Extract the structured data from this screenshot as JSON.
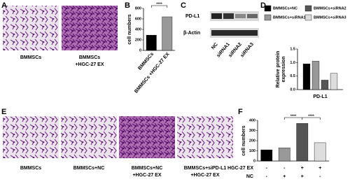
{
  "panel_labels": [
    "A",
    "B",
    "C",
    "D",
    "E",
    "F"
  ],
  "captions_a": [
    [
      "BMMSCs"
    ],
    [
      "BMMSCs",
      "+HGC-27 EX"
    ]
  ],
  "blot": {
    "rows": [
      "PD-L1",
      "β-Actin"
    ],
    "lanes": [
      "NC",
      "siRNA1",
      "siRNA2",
      "siRNA3"
    ]
  },
  "captions_e": [
    [
      "BMMSCs"
    ],
    [
      "BMMSCs+NC"
    ],
    [
      "BMMSCs+NC",
      "+HGC-27 EX"
    ],
    [
      "BMMSCs+siPD-L1",
      "+HGC-27 EX"
    ]
  ],
  "treatment_rows": [
    {
      "label": "HGC-27 EX",
      "marks": [
        "-",
        "-",
        "+",
        "+"
      ]
    },
    {
      "label": "NC",
      "marks": [
        "-",
        "+",
        "+",
        "-"
      ]
    }
  ],
  "chart_data": [
    {
      "type": "bar",
      "ylabel": "cell numbers",
      "categories": [
        "BMMSCs",
        "BMMSCs +HGC-27 EX"
      ],
      "values": [
        290,
        640
      ],
      "colors": [
        "#000000",
        "#999999"
      ],
      "ylim": [
        0,
        800
      ],
      "yticks": [
        0,
        200,
        400,
        600,
        800
      ],
      "annotations": [
        "****"
      ]
    },
    {
      "type": "grouped-bar",
      "ylabel": [
        "Relative protein",
        "expression"
      ],
      "categories": [
        "PD-L1"
      ],
      "series": [
        {
          "name": "BMMSCs+NC",
          "color": "#000000",
          "values": [
            0.95
          ]
        },
        {
          "name": "BMMSCs+siRNA1",
          "color": "#999999",
          "values": [
            1.05
          ]
        },
        {
          "name": "BMMSCs+siRNA2",
          "color": "#555555",
          "values": [
            0.35
          ]
        },
        {
          "name": "BMMSCs+siRNA3",
          "color": "#dddddd",
          "values": [
            0.6
          ]
        }
      ],
      "ylim": [
        0,
        1.5
      ],
      "yticks": [
        {
          "value": 0,
          "label": "0.0"
        },
        0.5,
        {
          "value": 1,
          "label": "1.0"
        },
        1.5
      ]
    },
    {
      "type": "bar",
      "ylabel": "cell numbers",
      "categories": [
        null,
        null,
        null,
        null
      ],
      "values": [
        110,
        130,
        370,
        180
      ],
      "colors": [
        "#000000",
        "#999999",
        "#555555",
        "#dddddd"
      ],
      "ylim": [
        0,
        400
      ],
      "yticks": [
        0,
        100,
        200,
        300,
        400
      ],
      "annotations": [
        "****",
        "****"
      ]
    }
  ]
}
